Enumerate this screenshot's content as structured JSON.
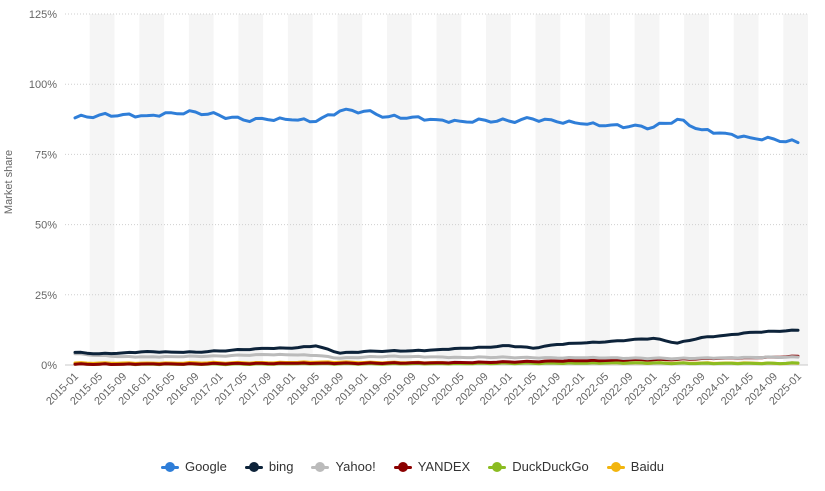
{
  "chart_data": {
    "type": "line",
    "title": "",
    "ylabel": "Market share",
    "xlabel": "",
    "ylim": [
      0,
      125
    ],
    "yticks": [
      0,
      25,
      50,
      75,
      100,
      125
    ],
    "ytick_labels": [
      "0%",
      "25%",
      "50%",
      "75%",
      "100%",
      "125%"
    ],
    "x_tick_labels": [
      "2015-01",
      "2015-05",
      "2015-09",
      "2016-01",
      "2016-05",
      "2016-09",
      "2017-01",
      "2017-05",
      "2017-09",
      "2018-01",
      "2018-05",
      "2018-09",
      "2019-01",
      "2019-05",
      "2019-09",
      "2020-01",
      "2020-05",
      "2020-09",
      "2021-01",
      "2021-05",
      "2021-09",
      "2022-01",
      "2022-05",
      "2022-09",
      "2023-01",
      "2023-05",
      "2023-09",
      "2024-01",
      "2024-05",
      "2024-09",
      "2025-01"
    ],
    "grid": true,
    "legend_position": "bottom",
    "series": [
      {
        "name": "Google",
        "color": "#2f7ed8",
        "values": [
          88.0,
          89.0,
          89.2,
          88.8,
          89.8,
          90.1,
          88.9,
          87.2,
          87.4,
          87.3,
          86.7,
          90.5,
          90.4,
          88.4,
          88.3,
          87.4,
          86.8,
          87.2,
          86.9,
          87.6,
          86.6,
          85.9,
          85.2,
          84.9,
          84.7,
          87.5,
          83.8,
          82.5,
          81.0,
          80.5,
          79.2
        ]
      },
      {
        "name": "bing",
        "color": "#0d233a",
        "values": [
          4.5,
          4.0,
          4.3,
          4.8,
          4.6,
          4.6,
          5.0,
          5.5,
          5.9,
          6.0,
          6.8,
          4.2,
          4.8,
          5.0,
          5.1,
          5.4,
          6.0,
          6.3,
          6.9,
          6.0,
          7.3,
          7.8,
          8.2,
          8.9,
          9.5,
          7.8,
          9.8,
          10.6,
          11.6,
          12.0,
          12.4
        ]
      },
      {
        "name": "Yahoo!",
        "color": "#bbbbbb",
        "values": [
          4.0,
          3.4,
          3.0,
          2.9,
          3.0,
          3.1,
          3.2,
          3.5,
          3.7,
          3.6,
          3.4,
          2.4,
          2.8,
          3.1,
          3.0,
          2.9,
          2.7,
          2.8,
          2.7,
          2.6,
          2.5,
          2.6,
          2.5,
          2.4,
          2.4,
          2.3,
          2.5,
          2.6,
          2.7,
          2.8,
          2.8
        ]
      },
      {
        "name": "YANDEX",
        "color": "#8b0000",
        "values": [
          0.3,
          0.3,
          0.3,
          0.4,
          0.4,
          0.4,
          0.5,
          0.5,
          0.5,
          0.6,
          0.6,
          0.6,
          0.6,
          0.7,
          0.8,
          0.8,
          0.9,
          1.0,
          1.1,
          1.2,
          1.4,
          1.5,
          1.6,
          1.8,
          1.9,
          2.0,
          2.3,
          2.5,
          2.6,
          2.8,
          3.1
        ]
      },
      {
        "name": "DuckDuckGo",
        "color": "#8bbc21",
        "values": [
          0.3,
          0.3,
          0.3,
          0.3,
          0.3,
          0.3,
          0.3,
          0.3,
          0.3,
          0.4,
          0.4,
          0.4,
          0.4,
          0.4,
          0.5,
          0.5,
          0.5,
          0.6,
          0.6,
          0.6,
          0.6,
          0.6,
          0.7,
          0.7,
          0.7,
          0.6,
          0.6,
          0.6,
          0.6,
          0.6,
          0.7
        ]
      },
      {
        "name": "Baidu",
        "color": "#f2b50e",
        "values": [
          0.7,
          0.7,
          0.7,
          0.7,
          0.7,
          0.8,
          0.8,
          0.8,
          0.8,
          0.9,
          1.0,
          1.0,
          0.9,
          0.9,
          0.9,
          0.9,
          0.8,
          0.8,
          0.8,
          0.7,
          0.7,
          0.7,
          0.7,
          0.7,
          0.7,
          0.7,
          0.7,
          0.7,
          0.7,
          0.6,
          0.6
        ]
      }
    ]
  }
}
